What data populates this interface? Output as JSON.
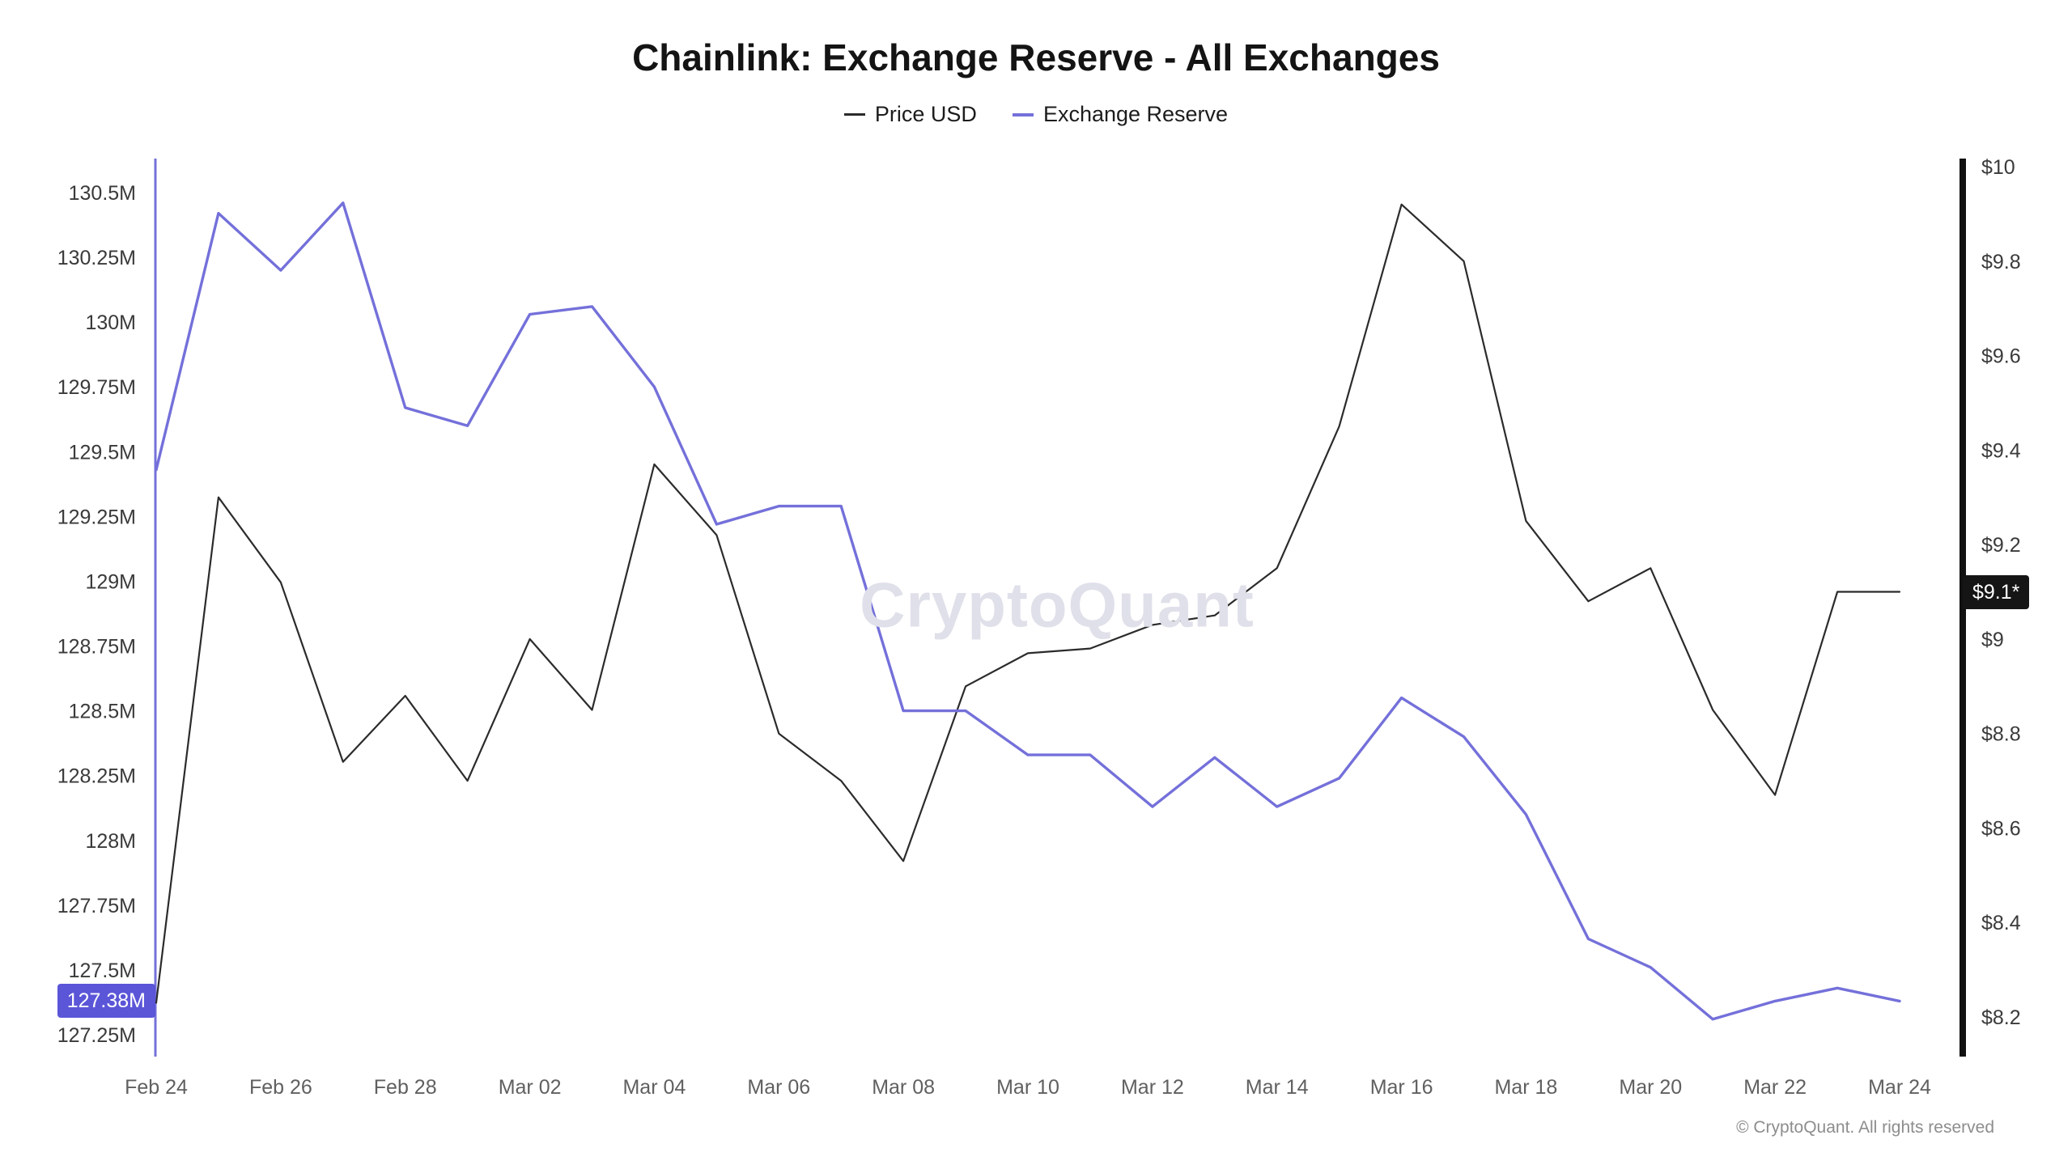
{
  "title": "Chainlink: Exchange Reserve - All Exchanges",
  "watermark": "CryptoQuant",
  "footer": {
    "copyright": "© CryptoQuant. All rights reserved"
  },
  "colors": {
    "price_line": "#2b2b2b",
    "reserve_line": "#7470da",
    "left_badge_bg": "#5b55d8",
    "right_badge_bg": "#151515",
    "right_axis": "#111111"
  },
  "axes": {
    "left": {
      "range": [
        127.25,
        130.5
      ],
      "current_label": "127.38M",
      "current_value": 127.38,
      "ticks": [
        {
          "label": "130.5M",
          "value": 130.5
        },
        {
          "label": "130.25M",
          "value": 130.25
        },
        {
          "label": "130M",
          "value": 130.0
        },
        {
          "label": "129.75M",
          "value": 129.75
        },
        {
          "label": "129.5M",
          "value": 129.5
        },
        {
          "label": "129.25M",
          "value": 129.25
        },
        {
          "label": "129M",
          "value": 129.0
        },
        {
          "label": "128.75M",
          "value": 128.75
        },
        {
          "label": "128.5M",
          "value": 128.5
        },
        {
          "label": "128.25M",
          "value": 128.25
        },
        {
          "label": "128M",
          "value": 128.0
        },
        {
          "label": "127.75M",
          "value": 127.75
        },
        {
          "label": "127.5M",
          "value": 127.5
        },
        {
          "label": "127.25M",
          "value": 127.25
        }
      ]
    },
    "right": {
      "range": [
        8.2,
        10.0
      ],
      "current_label": "$9.1*",
      "current_value": 9.1,
      "ticks": [
        {
          "label": "$10",
          "value": 10.0
        },
        {
          "label": "$9.8",
          "value": 9.8
        },
        {
          "label": "$9.6",
          "value": 9.6
        },
        {
          "label": "$9.4",
          "value": 9.4
        },
        {
          "label": "$9.2",
          "value": 9.2
        },
        {
          "label": "$9",
          "value": 9.0
        },
        {
          "label": "$8.8",
          "value": 8.8
        },
        {
          "label": "$8.6",
          "value": 8.6
        },
        {
          "label": "$8.4",
          "value": 8.4
        },
        {
          "label": "$8.2",
          "value": 8.2
        }
      ]
    }
  },
  "chart_data": {
    "type": "line",
    "title": "Chainlink: Exchange Reserve - All Exchanges",
    "x": [
      "Feb 24",
      "Feb 25",
      "Feb 26",
      "Feb 27",
      "Feb 28",
      "Mar 01",
      "Mar 02",
      "Mar 03",
      "Mar 04",
      "Mar 05",
      "Mar 06",
      "Mar 07",
      "Mar 08",
      "Mar 09",
      "Mar 10",
      "Mar 11",
      "Mar 12",
      "Mar 13",
      "Mar 14",
      "Mar 15",
      "Mar 16",
      "Mar 17",
      "Mar 18",
      "Mar 19",
      "Mar 20",
      "Mar 21",
      "Mar 22",
      "Mar 23",
      "Mar 24"
    ],
    "x_tick_step": 2,
    "legend_position": "top",
    "grid": false,
    "series": [
      {
        "name": "Price USD",
        "axis": "right",
        "color": "#2b2b2b",
        "ylim": [
          8.2,
          10.0
        ],
        "values": [
          8.23,
          9.3,
          9.12,
          8.74,
          8.88,
          8.7,
          9.0,
          8.85,
          9.37,
          9.22,
          8.8,
          8.7,
          8.53,
          8.9,
          8.97,
          8.98,
          9.03,
          9.05,
          9.15,
          9.45,
          9.92,
          9.8,
          9.25,
          9.08,
          9.15,
          8.85,
          8.67,
          9.1,
          9.1
        ]
      },
      {
        "name": "Exchange Reserve",
        "axis": "left",
        "color": "#7470da",
        "ylim": [
          127.25,
          130.5
        ],
        "values": [
          129.43,
          130.42,
          130.2,
          130.46,
          129.67,
          129.6,
          130.03,
          130.06,
          129.75,
          129.22,
          129.29,
          129.29,
          128.5,
          128.5,
          128.33,
          128.33,
          128.13,
          128.32,
          128.13,
          128.24,
          128.55,
          128.4,
          128.1,
          127.62,
          127.51,
          127.31,
          127.38,
          127.43,
          127.38
        ]
      }
    ]
  }
}
